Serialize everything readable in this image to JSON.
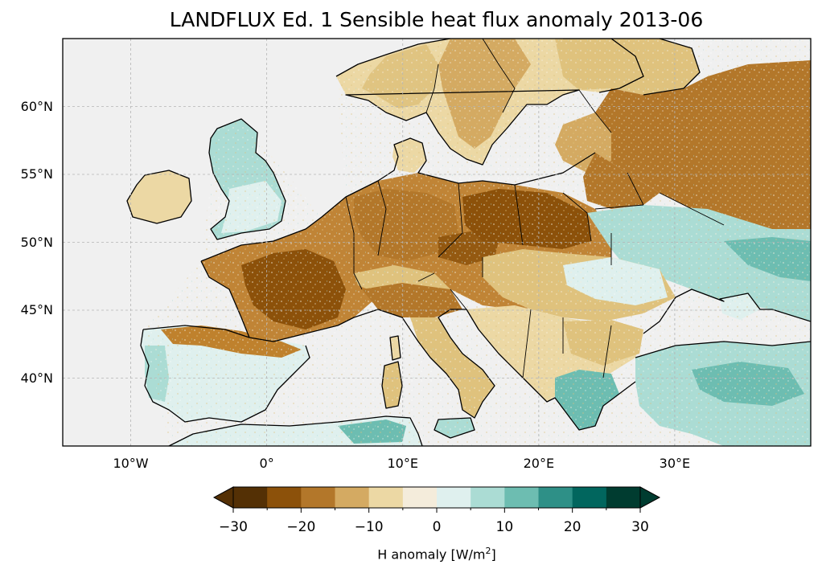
{
  "title": "LANDFLUX Ed. 1 Sensible heat flux anomaly 2013-06",
  "colorbar": {
    "label_main": "H anomaly [W/m",
    "label_sup": "2",
    "label_end": "]",
    "ticks": [
      "−30",
      "−20",
      "−10",
      "0",
      "10",
      "20",
      "30"
    ],
    "colors": [
      "#543005",
      "#8c510a",
      "#bf812d",
      "#dfc27d",
      "#f6e8c3",
      "#f5f5f5",
      "#c7eae5",
      "#80cdc1",
      "#35978f",
      "#01665e",
      "#003c30",
      "#002a22"
    ],
    "bins": [
      "#543005",
      "#8c510a",
      "#b3772a",
      "#d4aa62",
      "#ecd8a4",
      "#f4ecdb",
      "#dff0ee",
      "#abdcd4",
      "#6dbdb1",
      "#2e9087",
      "#01665e",
      "#003c30"
    ]
  },
  "map": {
    "lat_labels": [
      "60°N",
      "55°N",
      "50°N",
      "45°N",
      "40°N"
    ],
    "lon_labels": [
      "10°W",
      "0°",
      "10°E",
      "20°E",
      "30°E"
    ],
    "lon_range": [
      -15,
      40
    ],
    "lat_range": [
      35,
      65
    ],
    "ocean_color": "#f0f0f0",
    "gridlines": true
  }
}
